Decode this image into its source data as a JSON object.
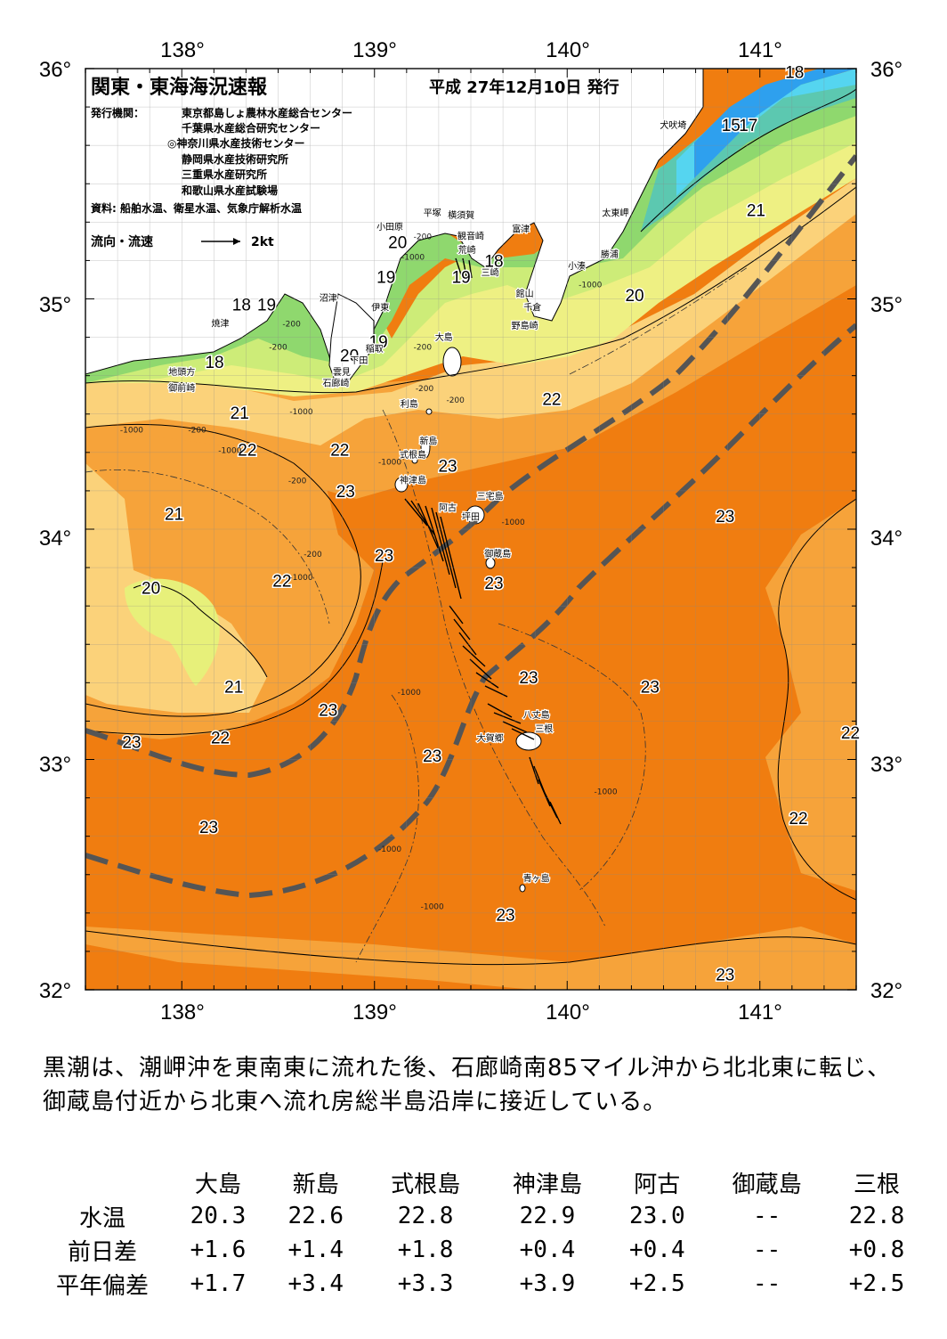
{
  "header": {
    "title": "関東・東海海況速報",
    "date": "平成 27年12月10日 発行",
    "agency_label": "発行機関：",
    "agencies": [
      "東京都島しょ農林水産総合センター",
      "千葉県水産総合研究センター",
      "◎神奈川県水産技術センター",
      "静岡県水産技術研究所",
      "三重県水産研究所",
      "和歌山県水産試験場"
    ],
    "sources": "資料: 船舶水温、衛星水温、気象庁解析水温",
    "flow_legend": "流向・流速",
    "flow_scale": "2kt"
  },
  "axes": {
    "lon_labels": [
      "138°",
      "139°",
      "140°",
      "141°"
    ],
    "lat_labels": [
      "36°",
      "35°",
      "34°",
      "33°",
      "32°"
    ],
    "lon_range": [
      137.5,
      141.5
    ],
    "lat_range": [
      32,
      36
    ]
  },
  "colors": {
    "warm23": "#f07d10",
    "warm22": "#f6a33a",
    "mid21": "#fbd27a",
    "cool20": "#eef083",
    "cool19": "#cdec78",
    "cool18": "#8fd86e",
    "cold17": "#5cc8b0",
    "cold16": "#55d5f0",
    "cold15": "#2ea0ee",
    "land": "#ffffff",
    "kuroshio_axis": "#555555"
  },
  "isotherm_labels": [
    {
      "text": "18",
      "lon": 141.18,
      "lat": 35.96
    },
    {
      "text": "15",
      "lon": 140.85,
      "lat": 35.73
    },
    {
      "text": "17",
      "lon": 140.94,
      "lat": 35.73
    },
    {
      "text": "21",
      "lon": 140.98,
      "lat": 35.36
    },
    {
      "text": "20",
      "lon": 140.35,
      "lat": 34.99
    },
    {
      "text": "20",
      "lon": 139.12,
      "lat": 35.22
    },
    {
      "text": "18",
      "lon": 139.62,
      "lat": 35.14
    },
    {
      "text": "19",
      "lon": 139.06,
      "lat": 35.07
    },
    {
      "text": "19",
      "lon": 139.45,
      "lat": 35.07
    },
    {
      "text": "18",
      "lon": 138.31,
      "lat": 34.95
    },
    {
      "text": "19",
      "lon": 138.44,
      "lat": 34.95
    },
    {
      "text": "19",
      "lon": 139.02,
      "lat": 34.79
    },
    {
      "text": "20",
      "lon": 138.87,
      "lat": 34.73
    },
    {
      "text": "18",
      "lon": 138.17,
      "lat": 34.7
    },
    {
      "text": "22",
      "lon": 139.92,
      "lat": 34.54
    },
    {
      "text": "21",
      "lon": 138.3,
      "lat": 34.48
    },
    {
      "text": "22",
      "lon": 138.34,
      "lat": 34.32
    },
    {
      "text": "22",
      "lon": 138.82,
      "lat": 34.32
    },
    {
      "text": "23",
      "lon": 139.38,
      "lat": 34.25
    },
    {
      "text": "23",
      "lon": 138.85,
      "lat": 34.14
    },
    {
      "text": "21",
      "lon": 137.96,
      "lat": 34.04
    },
    {
      "text": "23",
      "lon": 140.82,
      "lat": 34.03
    },
    {
      "text": "23",
      "lon": 139.05,
      "lat": 33.86
    },
    {
      "text": "22",
      "lon": 138.52,
      "lat": 33.75
    },
    {
      "text": "23",
      "lon": 139.62,
      "lat": 33.74
    },
    {
      "text": "20",
      "lon": 137.84,
      "lat": 33.72
    },
    {
      "text": "23",
      "lon": 139.8,
      "lat": 33.33
    },
    {
      "text": "23",
      "lon": 140.43,
      "lat": 33.29
    },
    {
      "text": "21",
      "lon": 138.27,
      "lat": 33.29
    },
    {
      "text": "23",
      "lon": 138.76,
      "lat": 33.19
    },
    {
      "text": "22",
      "lon": 141.47,
      "lat": 33.09
    },
    {
      "text": "23",
      "lon": 137.74,
      "lat": 33.05
    },
    {
      "text": "22",
      "lon": 138.2,
      "lat": 33.07
    },
    {
      "text": "23",
      "lon": 139.3,
      "lat": 32.99
    },
    {
      "text": "22",
      "lon": 141.2,
      "lat": 32.72
    },
    {
      "text": "23",
      "lon": 138.14,
      "lat": 32.68
    },
    {
      "text": "23",
      "lon": 139.68,
      "lat": 32.3
    },
    {
      "text": "23",
      "lon": 140.82,
      "lat": 32.04
    }
  ],
  "place_labels": [
    {
      "text": "犬吠埼",
      "lon": 140.55,
      "lat": 35.74
    },
    {
      "text": "太東岬",
      "lon": 140.25,
      "lat": 35.36
    },
    {
      "text": "勝浦",
      "lon": 140.22,
      "lat": 35.18
    },
    {
      "text": "小湊",
      "lon": 140.05,
      "lat": 35.13
    },
    {
      "text": "富津",
      "lon": 139.76,
      "lat": 35.29
    },
    {
      "text": "横須賀",
      "lon": 139.45,
      "lat": 35.35
    },
    {
      "text": "平塚",
      "lon": 139.3,
      "lat": 35.36
    },
    {
      "text": "観音崎",
      "lon": 139.5,
      "lat": 35.26
    },
    {
      "text": "荒崎",
      "lon": 139.48,
      "lat": 35.2
    },
    {
      "text": "三崎",
      "lon": 139.6,
      "lat": 35.1
    },
    {
      "text": "小田原",
      "lon": 139.08,
      "lat": 35.3
    },
    {
      "text": "館山",
      "lon": 139.78,
      "lat": 35.01
    },
    {
      "text": "千倉",
      "lon": 139.82,
      "lat": 34.95
    },
    {
      "text": "野島崎",
      "lon": 139.78,
      "lat": 34.87
    },
    {
      "text": "大島",
      "lon": 139.36,
      "lat": 34.82
    },
    {
      "text": "伊東",
      "lon": 139.03,
      "lat": 34.95
    },
    {
      "text": "沼津",
      "lon": 138.76,
      "lat": 34.99
    },
    {
      "text": "焼津",
      "lon": 138.2,
      "lat": 34.88
    },
    {
      "text": "稲取",
      "lon": 139.0,
      "lat": 34.77
    },
    {
      "text": "下田",
      "lon": 138.92,
      "lat": 34.72
    },
    {
      "text": "雲見",
      "lon": 138.83,
      "lat": 34.67
    },
    {
      "text": "石廊崎",
      "lon": 138.8,
      "lat": 34.62
    },
    {
      "text": "地頭方",
      "lon": 138.0,
      "lat": 34.67
    },
    {
      "text": "御前崎",
      "lon": 138.0,
      "lat": 34.6
    },
    {
      "text": "利島",
      "lon": 139.18,
      "lat": 34.53
    },
    {
      "text": "新島",
      "lon": 139.28,
      "lat": 34.37
    },
    {
      "text": "式根島",
      "lon": 139.2,
      "lat": 34.31
    },
    {
      "text": "神津島",
      "lon": 139.2,
      "lat": 34.2
    },
    {
      "text": "三宅島",
      "lon": 139.6,
      "lat": 34.13
    },
    {
      "text": "阿古",
      "lon": 139.38,
      "lat": 34.08
    },
    {
      "text": "坪田",
      "lon": 139.5,
      "lat": 34.04
    },
    {
      "text": "御蔵島",
      "lon": 139.64,
      "lat": 33.88
    },
    {
      "text": "八丈島",
      "lon": 139.84,
      "lat": 33.18
    },
    {
      "text": "三根",
      "lon": 139.88,
      "lat": 33.12
    },
    {
      "text": "大賀郷",
      "lon": 139.6,
      "lat": 33.08
    },
    {
      "text": "青ヶ島",
      "lon": 139.84,
      "lat": 32.47
    }
  ],
  "depth_labels": [
    {
      "text": "-1000",
      "lon": 140.12,
      "lat": 35.05
    },
    {
      "text": "-200",
      "lon": 139.25,
      "lat": 35.26
    },
    {
      "text": "-1000",
      "lon": 139.2,
      "lat": 35.17
    },
    {
      "text": "-200",
      "lon": 138.57,
      "lat": 34.88
    },
    {
      "text": "-200",
      "lon": 138.5,
      "lat": 34.78
    },
    {
      "text": "-200",
      "lon": 139.25,
      "lat": 34.78
    },
    {
      "text": "-200",
      "lon": 139.42,
      "lat": 34.55
    },
    {
      "text": "-200",
      "lon": 139.26,
      "lat": 34.6
    },
    {
      "text": "-1000",
      "lon": 137.74,
      "lat": 34.42
    },
    {
      "text": "-200",
      "lon": 138.08,
      "lat": 34.42
    },
    {
      "text": "-1000",
      "lon": 138.62,
      "lat": 34.5
    },
    {
      "text": "-1000",
      "lon": 138.25,
      "lat": 34.33
    },
    {
      "text": "-200",
      "lon": 138.6,
      "lat": 34.2
    },
    {
      "text": "-1000",
      "lon": 139.08,
      "lat": 34.28
    },
    {
      "text": "-1000",
      "lon": 139.72,
      "lat": 34.02
    },
    {
      "text": "-200",
      "lon": 138.68,
      "lat": 33.88
    },
    {
      "text": "-1000",
      "lon": 138.62,
      "lat": 33.78
    },
    {
      "text": "-1000",
      "lon": 139.18,
      "lat": 33.28
    },
    {
      "text": "-1000",
      "lon": 140.2,
      "lat": 32.85
    },
    {
      "text": "-1000",
      "lon": 139.08,
      "lat": 32.6
    },
    {
      "text": "-1000",
      "lon": 139.3,
      "lat": 32.35
    }
  ],
  "summary": "黒潮は、潮岬沖を東南東に流れた後、石廊崎南85マイル沖から北北東に転じ、御蔵島付近から北東へ流れ房総半島沿岸に接近している。",
  "stats": {
    "columns": [
      "大島",
      "新島",
      "式根島",
      "神津島",
      "阿古",
      "御蔵島",
      "三根"
    ],
    "rows": [
      {
        "label": "水温",
        "values": [
          "20.3",
          "22.6",
          "22.8",
          "22.9",
          "23.0",
          "--",
          "22.8"
        ]
      },
      {
        "label": "前日差",
        "values": [
          "+1.6",
          "+1.4",
          "+1.8",
          "+0.4",
          "+0.4",
          "--",
          "+0.8"
        ]
      },
      {
        "label": "平年偏差",
        "values": [
          "+1.7",
          "+3.4",
          "+3.3",
          "+3.9",
          "+2.5",
          "--",
          "+2.5"
        ]
      }
    ]
  }
}
